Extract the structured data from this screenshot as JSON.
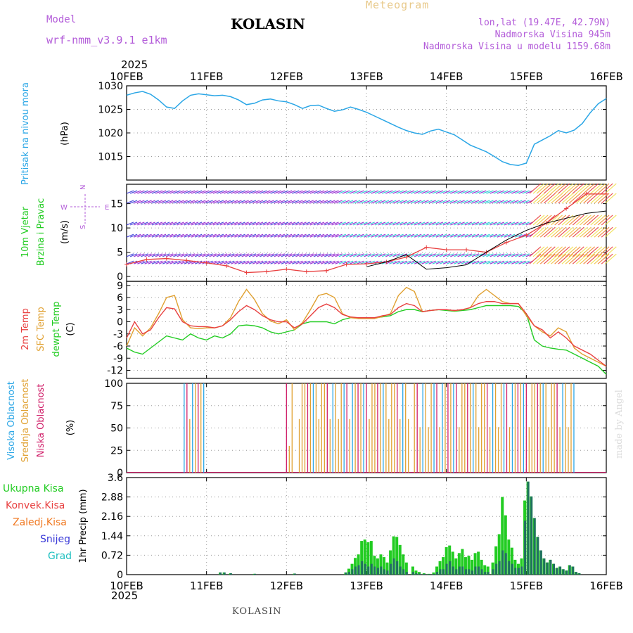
{
  "header": {
    "meteogram_label": "Meteogram",
    "station": "KOLASIN",
    "model_label": "Model",
    "model_name": "wrf-nmm_v3.9.1 e1km",
    "coords": "lon,lat (19.47E, 42.79N)",
    "elevation": "Nadmorska Visina 945m",
    "model_elevation": "Nadmorska Visina u modelu 1159.68m",
    "year": "2025",
    "footer_station": "KOLASIN",
    "credit": "made by Angel"
  },
  "colors": {
    "pressure": "#2aa6e6",
    "wind_speed": "#e84040",
    "wind_gust": "#000000",
    "t2m": "#e84040",
    "tsfc": "#e0a030",
    "dewpoint": "#22cc22",
    "cloud_high": "#2aa6e6",
    "cloud_mid": "#e0a030",
    "cloud_low": "#d0206a",
    "precip_total": "#22cc22",
    "precip_conv": "#e84040",
    "precip_frz": "#f07820",
    "precip_snow": "#3a3ad8",
    "precip_hail": "#20c0c0",
    "accent_purple": "#b35cd9"
  },
  "chart_data": [
    {
      "type": "line",
      "panel": "pressure",
      "title": "Pritisak na nivou mora",
      "ylabel": "(hPa)",
      "ylim": [
        1010,
        1030
      ],
      "yticks": [
        1015,
        1020,
        1025,
        1030
      ],
      "xlabels": [
        "10FEB",
        "11FEB",
        "12FEB",
        "13FEB",
        "14FEB",
        "15FEB",
        "16FEB"
      ],
      "x": [
        0,
        0.1,
        0.2,
        0.3,
        0.4,
        0.5,
        0.6,
        0.7,
        0.8,
        0.9,
        1.0,
        1.1,
        1.2,
        1.3,
        1.4,
        1.5,
        1.6,
        1.7,
        1.8,
        1.9,
        2.0,
        2.1,
        2.2,
        2.3,
        2.4,
        2.5,
        2.6,
        2.7,
        2.8,
        2.9,
        3.0,
        3.1,
        3.2,
        3.3,
        3.4,
        3.5,
        3.6,
        3.7,
        3.8,
        3.9,
        4.0,
        4.1,
        4.2,
        4.3,
        4.4,
        4.5,
        4.6,
        4.7,
        4.8,
        4.9,
        5.0,
        5.1,
        5.2,
        5.3,
        5.4,
        5.5,
        5.6,
        5.7,
        5.8,
        5.9,
        6.0
      ],
      "series": [
        {
          "values": [
            1028.0,
            1028.5,
            1028.8,
            1028.2,
            1027.0,
            1025.5,
            1025.2,
            1026.8,
            1028.0,
            1028.3,
            1028.1,
            1027.9,
            1028.0,
            1027.7,
            1027.0,
            1026.0,
            1026.3,
            1027.0,
            1027.2,
            1026.8,
            1026.6,
            1026.0,
            1025.2,
            1025.8,
            1025.9,
            1025.2,
            1024.6,
            1024.9,
            1025.5,
            1025.0,
            1024.4,
            1023.6,
            1022.8,
            1022.0,
            1021.2,
            1020.5,
            1020.0,
            1019.7,
            1020.4,
            1020.8,
            1020.2,
            1019.6,
            1018.5,
            1017.4,
            1016.7,
            1016.0,
            1015.0,
            1013.9,
            1013.3,
            1013.1,
            1013.6,
            1017.6,
            1018.5,
            1019.4,
            1020.5,
            1020.0,
            1020.6,
            1022.0,
            1024.3,
            1026.2,
            1027.3
          ]
        }
      ]
    },
    {
      "type": "line",
      "panel": "wind",
      "title": "10m Vjetar Brzina i Pravac",
      "ylabel": "(m/s)",
      "ylim": [
        -1,
        19
      ],
      "yticks": [
        0,
        5,
        10,
        15
      ],
      "direction_legend": [
        "N",
        "W",
        "E",
        "S"
      ],
      "x": [
        0,
        0.25,
        0.5,
        0.75,
        1.0,
        1.25,
        1.5,
        1.75,
        2.0,
        2.25,
        2.5,
        2.75,
        3.0,
        3.25,
        3.5,
        3.75,
        4.0,
        4.25,
        4.5,
        4.75,
        5.0,
        5.25,
        5.5,
        5.75,
        6.0
      ],
      "series": [
        {
          "name": "speed",
          "values": [
            2.5,
            3.5,
            3.7,
            3.3,
            2.8,
            2.2,
            0.8,
            1.0,
            1.5,
            1.0,
            1.2,
            2.5,
            2.6,
            3.0,
            4.0,
            6.0,
            5.5,
            5.5,
            5.0,
            7.0,
            8.5,
            11,
            14,
            17,
            17
          ]
        },
        {
          "name": "gust",
          "values": [
            null,
            null,
            null,
            null,
            null,
            null,
            null,
            null,
            null,
            null,
            null,
            null,
            2.0,
            3.0,
            4.5,
            1.5,
            1.8,
            2.4,
            5.0,
            7.5,
            9.5,
            11,
            12,
            13,
            13.5
          ]
        }
      ]
    },
    {
      "type": "line",
      "panel": "temperature",
      "ylabel": "(C)",
      "series_labels": [
        "2m Temp",
        "SFC Temp",
        "dewpt Temp"
      ],
      "ylim": [
        -14,
        10
      ],
      "yticks": [
        -12,
        -9,
        -6,
        -3,
        0,
        3,
        6,
        9
      ],
      "x": [
        0,
        0.1,
        0.2,
        0.3,
        0.4,
        0.5,
        0.6,
        0.7,
        0.8,
        0.9,
        1.0,
        1.1,
        1.2,
        1.3,
        1.4,
        1.5,
        1.6,
        1.7,
        1.8,
        1.9,
        2.0,
        2.1,
        2.2,
        2.3,
        2.4,
        2.5,
        2.6,
        2.7,
        2.8,
        2.9,
        3.0,
        3.1,
        3.2,
        3.3,
        3.4,
        3.5,
        3.6,
        3.7,
        3.8,
        3.9,
        4.0,
        4.1,
        4.2,
        4.3,
        4.4,
        4.5,
        4.6,
        4.7,
        4.8,
        4.9,
        5.0,
        5.1,
        5.2,
        5.3,
        5.4,
        5.5,
        5.6,
        5.7,
        5.8,
        5.9,
        6.0
      ],
      "series": [
        {
          "name": "2m Temp",
          "values": [
            -4,
            0,
            -3,
            -2,
            1,
            3.5,
            3.2,
            0,
            -1,
            -1.2,
            -1.2,
            -1.5,
            -1,
            0.5,
            2.5,
            4,
            3,
            1.5,
            0.5,
            0,
            0,
            -1.5,
            -0.5,
            1.5,
            3.5,
            4.4,
            3.5,
            1.8,
            1.2,
            1.0,
            1.0,
            1.0,
            1.5,
            1.8,
            3.5,
            4.5,
            4,
            2.5,
            2.8,
            3.0,
            3.0,
            2.8,
            3.0,
            3.5,
            4.5,
            5.0,
            5.0,
            4.5,
            4.5,
            4.5,
            2.0,
            -1,
            -2,
            -4,
            -2.5,
            -4,
            -6,
            -7,
            -8,
            -9.5,
            -11
          ]
        },
        {
          "name": "SFC Temp",
          "values": [
            -6,
            -1.5,
            -3.5,
            -1.5,
            2,
            6,
            6.5,
            0.5,
            -1.5,
            -1.7,
            -1.5,
            -1.5,
            -1,
            1,
            5,
            8,
            5.5,
            2,
            0.2,
            -0.5,
            0.5,
            -2,
            -0.2,
            3,
            6.5,
            7,
            6,
            2,
            1.0,
            0.8,
            0.8,
            0.8,
            1.3,
            2,
            6.5,
            8.5,
            7.5,
            2.5,
            2.8,
            3.0,
            3.0,
            2.7,
            3.0,
            3.5,
            6.5,
            8.0,
            6.5,
            5,
            4.5,
            4.5,
            1.5,
            -1,
            -2.5,
            -3.5,
            -1.5,
            -2.5,
            -6.5,
            -8,
            -9,
            -10,
            -11
          ]
        },
        {
          "name": "dewpt Temp",
          "values": [
            -6.5,
            -7.5,
            -8,
            -6.5,
            -5,
            -3.5,
            -4,
            -4.5,
            -3,
            -4,
            -4.5,
            -3.5,
            -4,
            -3,
            -1,
            -0.8,
            -1,
            -1.5,
            -2.5,
            -3,
            -2.5,
            -2,
            -0.5,
            0,
            0,
            0,
            -0.5,
            0.5,
            1.0,
            1.0,
            1.0,
            1.0,
            1.2,
            1.5,
            2.5,
            3,
            3,
            2.5,
            2.8,
            3.0,
            2.8,
            2.6,
            2.8,
            3.0,
            3.5,
            4.0,
            4.0,
            4.0,
            4.0,
            3.8,
            2.0,
            -4.5,
            -6,
            -6.5,
            -6.8,
            -7,
            -8,
            -9,
            -10,
            -11,
            -13
          ]
        }
      ]
    },
    {
      "type": "bar",
      "panel": "clouds",
      "ylabel": "(%)",
      "series_labels": [
        "Visoka Oblacnost",
        "Srednja Oblacnost",
        "Niska Oblacnost"
      ],
      "ylim": [
        0,
        100
      ],
      "yticks": [
        0,
        25,
        50,
        75,
        100
      ]
    },
    {
      "type": "bar",
      "panel": "precip",
      "ylabel": "1hr Precip (mm)",
      "legend": [
        "Ukupna Kisa",
        "Konvek.Kisa",
        "Zaledj.Kisa",
        "Snijeg",
        "Grad"
      ],
      "ylim": [
        0,
        3.6
      ],
      "yticks": [
        0,
        0.72,
        1.44,
        2.16,
        2.88,
        3.6
      ],
      "ytick_labels": [
        "0",
        "0.72",
        "1.44",
        "2.16",
        "2.88",
        "3.6"
      ],
      "bars": [
        {
          "x": 1.17,
          "total": 0.08,
          "snow": 0.08
        },
        {
          "x": 1.22,
          "total": 0.08,
          "snow": 0.08
        },
        {
          "x": 1.3,
          "total": 0.05,
          "snow": 0.05
        },
        {
          "x": 1.6,
          "total": 0.03,
          "snow": 0.03
        },
        {
          "x": 2.1,
          "total": 0.04,
          "snow": 0.04
        },
        {
          "x": 2.74,
          "total": 0.08,
          "snow": 0.08
        },
        {
          "x": 2.78,
          "total": 0.22,
          "snow": 0.1
        },
        {
          "x": 2.82,
          "total": 0.4,
          "snow": 0.2
        },
        {
          "x": 2.86,
          "total": 0.62,
          "snow": 0.3
        },
        {
          "x": 2.9,
          "total": 0.75,
          "snow": 0.35
        },
        {
          "x": 2.94,
          "total": 1.25,
          "snow": 0.5
        },
        {
          "x": 2.98,
          "total": 1.3,
          "snow": 0.4
        },
        {
          "x": 3.02,
          "total": 1.2,
          "snow": 0.3
        },
        {
          "x": 3.06,
          "total": 1.25,
          "snow": 0.4
        },
        {
          "x": 3.1,
          "total": 0.7,
          "snow": 0.3
        },
        {
          "x": 3.14,
          "total": 0.6,
          "snow": 0.25
        },
        {
          "x": 3.18,
          "total": 0.75,
          "snow": 0.3
        },
        {
          "x": 3.22,
          "total": 0.65,
          "snow": 0.2
        },
        {
          "x": 3.26,
          "total": 0.45,
          "snow": 0.15
        },
        {
          "x": 3.3,
          "total": 0.9,
          "snow": 0.4
        },
        {
          "x": 3.34,
          "total": 1.42,
          "snow": 0.6
        },
        {
          "x": 3.38,
          "total": 1.4,
          "snow": 0.5
        },
        {
          "x": 3.42,
          "total": 1.1,
          "snow": 0.3
        },
        {
          "x": 3.46,
          "total": 0.75,
          "snow": 0.2
        },
        {
          "x": 3.5,
          "total": 0.45,
          "snow": 0.1
        },
        {
          "x": 3.58,
          "total": 0.3,
          "snow": 0.1
        },
        {
          "x": 3.62,
          "total": 0.15,
          "snow": 0.05
        },
        {
          "x": 3.66,
          "total": 0.1,
          "snow": 0.04
        },
        {
          "x": 3.72,
          "total": 0.05,
          "snow": 0.03
        },
        {
          "x": 3.78,
          "total": 0.03,
          "snow": 0.02
        },
        {
          "x": 3.84,
          "total": 0.08,
          "snow": 0.03
        },
        {
          "x": 3.88,
          "total": 0.3,
          "snow": 0.1
        },
        {
          "x": 3.92,
          "total": 0.5,
          "snow": 0.2
        },
        {
          "x": 3.96,
          "total": 0.65,
          "snow": 0.2
        },
        {
          "x": 4.0,
          "total": 1.02,
          "snow": 0.4
        },
        {
          "x": 4.04,
          "total": 1.08,
          "snow": 0.5
        },
        {
          "x": 4.08,
          "total": 0.85,
          "snow": 0.3
        },
        {
          "x": 4.12,
          "total": 0.6,
          "snow": 0.2
        },
        {
          "x": 4.16,
          "total": 0.8,
          "snow": 0.3
        },
        {
          "x": 4.2,
          "total": 0.95,
          "snow": 0.3
        },
        {
          "x": 4.24,
          "total": 0.65,
          "snow": 0.2
        },
        {
          "x": 4.28,
          "total": 0.7,
          "snow": 0.2
        },
        {
          "x": 4.32,
          "total": 0.55,
          "snow": 0.15
        },
        {
          "x": 4.36,
          "total": 0.8,
          "snow": 0.3
        },
        {
          "x": 4.4,
          "total": 0.85,
          "snow": 0.3
        },
        {
          "x": 4.44,
          "total": 0.55,
          "snow": 0.2
        },
        {
          "x": 4.48,
          "total": 0.35,
          "snow": 0.1
        },
        {
          "x": 4.52,
          "total": 0.3,
          "snow": 0.1
        },
        {
          "x": 4.58,
          "total": 0.45,
          "snow": 0.2
        },
        {
          "x": 4.62,
          "total": 1.05,
          "snow": 0.4
        },
        {
          "x": 4.66,
          "total": 1.5,
          "snow": 0.5
        },
        {
          "x": 4.7,
          "total": 2.88,
          "snow": 0.9
        },
        {
          "x": 4.74,
          "total": 2.2,
          "snow": 0.8
        },
        {
          "x": 4.78,
          "total": 1.3,
          "snow": 0.5
        },
        {
          "x": 4.82,
          "total": 1.0,
          "snow": 0.4
        },
        {
          "x": 4.86,
          "total": 0.55,
          "snow": 0.25
        },
        {
          "x": 4.9,
          "total": 0.4,
          "snow": 0.25
        },
        {
          "x": 4.94,
          "total": 0.6,
          "snow": 0.3
        },
        {
          "x": 4.98,
          "total": 2.75,
          "snow": 2.0
        },
        {
          "x": 5.02,
          "total": 3.45,
          "snow": 3.45
        },
        {
          "x": 5.06,
          "total": 2.9,
          "snow": 2.9
        },
        {
          "x": 5.1,
          "total": 2.1,
          "snow": 2.1
        },
        {
          "x": 5.14,
          "total": 1.4,
          "snow": 1.4
        },
        {
          "x": 5.18,
          "total": 0.9,
          "snow": 0.9
        },
        {
          "x": 5.22,
          "total": 0.6,
          "snow": 0.6
        },
        {
          "x": 5.26,
          "total": 0.45,
          "snow": 0.45
        },
        {
          "x": 5.3,
          "total": 0.55,
          "snow": 0.55
        },
        {
          "x": 5.34,
          "total": 0.4,
          "snow": 0.4
        },
        {
          "x": 5.38,
          "total": 0.25,
          "snow": 0.25
        },
        {
          "x": 5.42,
          "total": 0.3,
          "snow": 0.3
        },
        {
          "x": 5.46,
          "total": 0.2,
          "snow": 0.2
        },
        {
          "x": 5.5,
          "total": 0.15,
          "snow": 0.15
        },
        {
          "x": 5.54,
          "total": 0.35,
          "snow": 0.35
        },
        {
          "x": 5.58,
          "total": 0.3,
          "snow": 0.3
        },
        {
          "x": 5.62,
          "total": 0.1,
          "snow": 0.1
        },
        {
          "x": 5.66,
          "total": 0.05,
          "snow": 0.05
        }
      ]
    }
  ]
}
